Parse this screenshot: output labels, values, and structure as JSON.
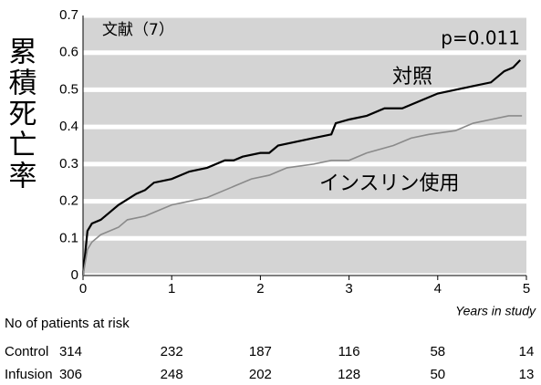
{
  "chart_data": {
    "type": "line",
    "ylabel": "累積死亡率",
    "xlabel": "Years in study",
    "annotations": [
      "文献（7）",
      "p=0.011",
      "対照",
      "インスリン使用"
    ],
    "series": [
      {
        "name": "対照",
        "color": "#000000",
        "x": [
          0,
          0.05,
          0.1,
          0.2,
          0.3,
          0.4,
          0.6,
          0.7,
          0.8,
          1.0,
          1.2,
          1.4,
          1.6,
          1.7,
          1.8,
          2.0,
          2.1,
          2.2,
          2.4,
          2.6,
          2.8,
          2.85,
          3.0,
          3.2,
          3.4,
          3.6,
          3.8,
          4.0,
          4.2,
          4.4,
          4.6,
          4.75,
          4.85,
          4.93
        ],
        "values": [
          0,
          0.12,
          0.14,
          0.15,
          0.17,
          0.19,
          0.22,
          0.23,
          0.25,
          0.26,
          0.28,
          0.29,
          0.31,
          0.31,
          0.32,
          0.33,
          0.33,
          0.35,
          0.36,
          0.37,
          0.38,
          0.41,
          0.42,
          0.43,
          0.45,
          0.45,
          0.47,
          0.49,
          0.5,
          0.51,
          0.52,
          0.55,
          0.56,
          0.58
        ]
      },
      {
        "name": "インスリン使用",
        "color": "#8a8a8a",
        "x": [
          0,
          0.05,
          0.1,
          0.2,
          0.4,
          0.5,
          0.7,
          0.8,
          1.0,
          1.2,
          1.4,
          1.5,
          1.7,
          1.9,
          2.1,
          2.3,
          2.6,
          2.8,
          3.0,
          3.2,
          3.5,
          3.7,
          3.9,
          4.2,
          4.4,
          4.6,
          4.8,
          4.95
        ],
        "values": [
          0,
          0.07,
          0.09,
          0.11,
          0.13,
          0.15,
          0.16,
          0.17,
          0.19,
          0.2,
          0.21,
          0.22,
          0.24,
          0.26,
          0.27,
          0.29,
          0.3,
          0.31,
          0.31,
          0.33,
          0.35,
          0.37,
          0.38,
          0.39,
          0.41,
          0.42,
          0.43,
          0.43
        ]
      }
    ],
    "xlim": [
      0,
      5
    ],
    "xticks": [
      0,
      1,
      2,
      3,
      4,
      5
    ],
    "ylim": [
      0,
      0.7
    ],
    "yticks": [
      0,
      0.1,
      0.2,
      0.3,
      0.4,
      0.5,
      0.6,
      0.7
    ],
    "grid": true
  },
  "risk_table": {
    "title": "No of patients at risk",
    "rows": [
      {
        "label": "Control",
        "values": [
          "314",
          "232",
          "187",
          "116",
          "58",
          "14"
        ]
      },
      {
        "label": "Infusion",
        "values": [
          "306",
          "248",
          "202",
          "128",
          "50",
          "13"
        ]
      }
    ]
  }
}
